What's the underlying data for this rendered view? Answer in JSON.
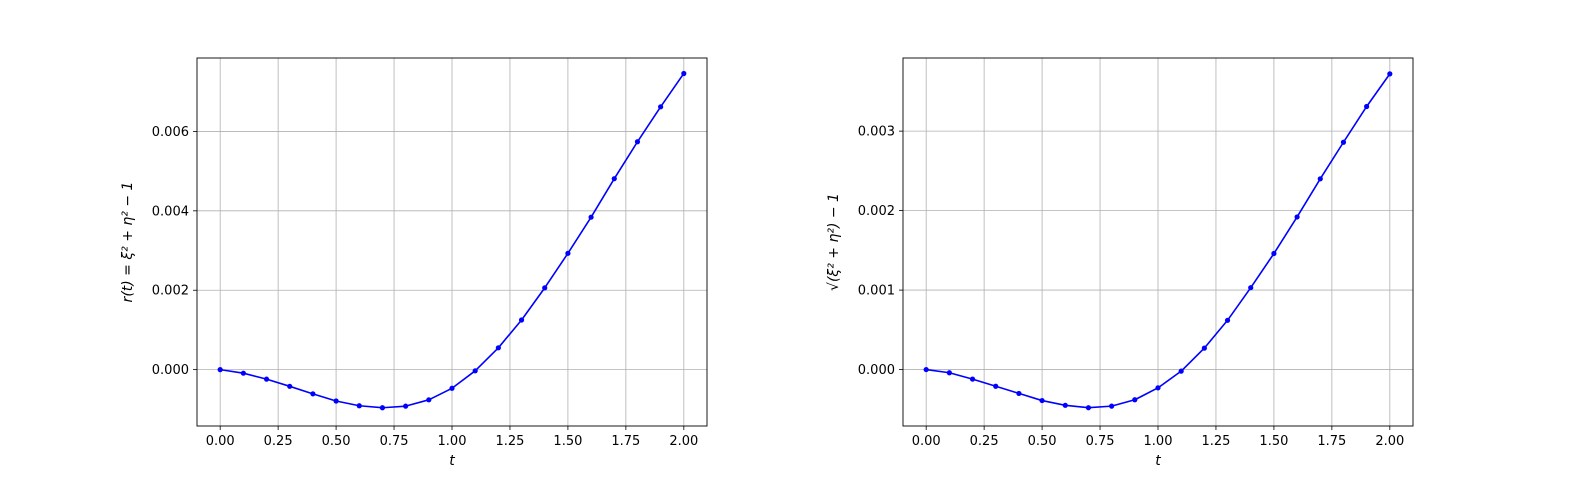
{
  "chart_data": [
    {
      "type": "line",
      "title": "",
      "xlabel": "t",
      "ylabel": "r(t) = ξ² + η² − 1",
      "xlim": [
        -0.1,
        2.1
      ],
      "ylim": [
        -0.00142,
        0.00785
      ],
      "x_ticks": [
        0.0,
        0.25,
        0.5,
        0.75,
        1.0,
        1.25,
        1.5,
        1.75,
        2.0
      ],
      "x_tick_labels": [
        "0.00",
        "0.25",
        "0.50",
        "0.75",
        "1.00",
        "1.25",
        "1.50",
        "1.75",
        "2.00"
      ],
      "y_ticks": [
        0.0,
        0.002,
        0.004,
        0.006
      ],
      "y_tick_labels": [
        "0.000",
        "0.002",
        "0.004",
        "0.006"
      ],
      "grid": true,
      "color": "#0000ff",
      "marker": "dot",
      "series": [
        {
          "x": [
            0.0,
            0.1,
            0.2,
            0.3,
            0.4,
            0.5,
            0.6,
            0.7,
            0.8,
            0.9,
            1.0,
            1.1,
            1.2,
            1.3,
            1.4,
            1.5,
            1.6,
            1.7,
            1.8,
            1.9,
            2.0
          ],
          "y": [
            0.0,
            -9e-05,
            -0.00024,
            -0.00042,
            -0.00061,
            -0.00079,
            -0.00091,
            -0.00096,
            -0.00092,
            -0.00076,
            -0.00047,
            -3e-05,
            0.00055,
            0.00125,
            0.00206,
            0.00293,
            0.00384,
            0.00481,
            0.00574,
            0.00662,
            0.00746
          ]
        }
      ]
    },
    {
      "type": "line",
      "title": "",
      "xlabel": "t",
      "ylabel": "√(ξ² + η²) − 1",
      "xlim": [
        -0.1,
        2.1
      ],
      "ylim": [
        -0.00071,
        0.00392
      ],
      "x_ticks": [
        0.0,
        0.25,
        0.5,
        0.75,
        1.0,
        1.25,
        1.5,
        1.75,
        2.0
      ],
      "x_tick_labels": [
        "0.00",
        "0.25",
        "0.50",
        "0.75",
        "1.00",
        "1.25",
        "1.50",
        "1.75",
        "2.00"
      ],
      "y_ticks": [
        0.0,
        0.001,
        0.002,
        0.003
      ],
      "y_tick_labels": [
        "0.000",
        "0.001",
        "0.002",
        "0.003"
      ],
      "grid": true,
      "color": "#0000ff",
      "marker": "dot",
      "series": [
        {
          "x": [
            0.0,
            0.1,
            0.2,
            0.3,
            0.4,
            0.5,
            0.6,
            0.7,
            0.8,
            0.9,
            1.0,
            1.1,
            1.2,
            1.3,
            1.4,
            1.5,
            1.6,
            1.7,
            1.8,
            1.9,
            2.0
          ],
          "y": [
            0.0,
            -4e-05,
            -0.00012,
            -0.00021,
            -0.0003,
            -0.00039,
            -0.00045,
            -0.00048,
            -0.00046,
            -0.00038,
            -0.00023,
            -2e-05,
            0.00027,
            0.00062,
            0.00103,
            0.00146,
            0.00192,
            0.0024,
            0.00286,
            0.00331,
            0.00372
          ]
        }
      ]
    }
  ]
}
